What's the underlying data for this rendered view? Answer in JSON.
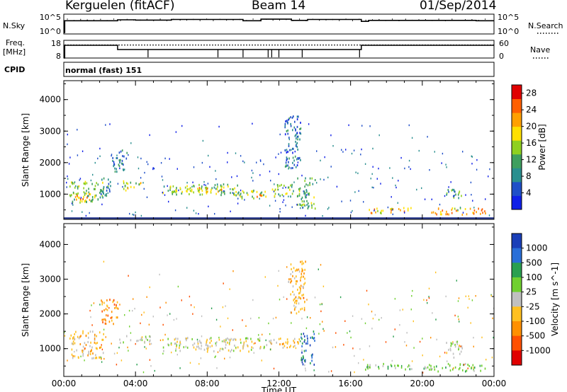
{
  "header": {
    "station": "Kerguelen (fitACF)",
    "beam": "Beam 14",
    "date": "01/Sep/2014"
  },
  "left_labels": {
    "nsky": "N.Sky",
    "freq_line1": "Freq.",
    "freq_line2": "[MHz]",
    "cpid": "CPID"
  },
  "right_labels": {
    "nsearch": "N.Search",
    "nave": "Nave"
  },
  "cpid_value": "normal (fast) 151",
  "colors": {
    "frame": "#000000",
    "scatter_ground": "#2a3b8f",
    "freq_solid": "#000000"
  },
  "chart_data": [
    {
      "id": "noise",
      "type": "line",
      "ylabel_left": "N.Sky",
      "ylabel_right": "N.Search",
      "yticks_left": [
        "10^5",
        "10^0"
      ],
      "yticks_right": [
        "10^5",
        "10^0"
      ],
      "xlim_hours": [
        0,
        24
      ],
      "series": [
        {
          "x": [
            0,
            0.05,
            0.05,
            3,
            3,
            4,
            4,
            6,
            6,
            10,
            10,
            11,
            11,
            12.7,
            12.7,
            13.6,
            13.6,
            16.6,
            16.6,
            17.0,
            17.0,
            23,
            23,
            24
          ],
          "y": [
            0,
            0,
            3.8,
            3.8,
            4.1,
            4.1,
            4.0,
            4.0,
            4.2,
            4.2,
            3.8,
            3.8,
            4.3,
            4.3,
            3.9,
            3.9,
            4.2,
            4.2,
            3.6,
            3.6,
            3.9,
            3.9,
            3.8,
            3.8
          ]
        }
      ]
    },
    {
      "id": "frequency",
      "type": "line",
      "ylabel_left": "Freq. [MHz]",
      "ylabel_right": "Nave",
      "yticks_left": [
        "18",
        "8"
      ],
      "yticks_right": [
        "60",
        "0"
      ],
      "ylim_left": [
        8,
        18
      ],
      "ylim_right": [
        0,
        60
      ],
      "xlim_hours": [
        0,
        24
      ],
      "series": [
        {
          "name": "Freq",
          "style": "solid",
          "x": [
            0,
            0.05,
            0.05,
            3.0,
            3.0,
            16.6,
            16.6,
            24
          ],
          "y": [
            8,
            8,
            15.2,
            15.2,
            12.8,
            12.8,
            15.2,
            15.2
          ]
        },
        {
          "name": "Nave",
          "style": "dotted",
          "x": [
            0.05,
            24
          ],
          "y": [
            44,
            44
          ]
        }
      ],
      "drops_hours": [
        4.7,
        8.6,
        10.0,
        11.4,
        11.6,
        12.0,
        13.3,
        16.5
      ]
    },
    {
      "id": "power",
      "type": "heatmap",
      "ylabel": "Slant Range [km]",
      "ylim": [
        200,
        4600
      ],
      "yticks": [
        1000,
        2000,
        3000,
        4000
      ],
      "xlim_hours": [
        0,
        24
      ],
      "colorbar_label": "Power [dB]",
      "colorbar_ticks": [
        4,
        8,
        12,
        16,
        20,
        24,
        28
      ],
      "colorbar_range": [
        0,
        30
      ],
      "colors": [
        "#1020e8",
        "#1f4fc8",
        "#2a8f8f",
        "#3f9f5f",
        "#8fd020",
        "#ffe000",
        "#ffa000",
        "#ff6000",
        "#e00000"
      ],
      "patches": [
        {
          "t": [
            0.3,
            2.2
          ],
          "r": [
            700,
            1400
          ],
          "v": 14
        },
        {
          "t": [
            0.6,
            1.5
          ],
          "r": [
            780,
            1000
          ],
          "v": 24
        },
        {
          "t": [
            2.0,
            2.6
          ],
          "r": [
            850,
            1500
          ],
          "v": 8
        },
        {
          "t": [
            2.7,
            3.5
          ],
          "r": [
            1700,
            2400
          ],
          "v": 8
        },
        {
          "t": [
            3.3,
            4.3
          ],
          "r": [
            1100,
            1400
          ],
          "v": 16
        },
        {
          "t": [
            5.5,
            9.8
          ],
          "r": [
            950,
            1300
          ],
          "v": 14
        },
        {
          "t": [
            6.2,
            8.8
          ],
          "r": [
            1050,
            1200
          ],
          "v": 20
        },
        {
          "t": [
            9.8,
            11.3
          ],
          "r": [
            850,
            1100
          ],
          "v": 16
        },
        {
          "t": [
            10.2,
            11.0
          ],
          "r": [
            900,
            1000
          ],
          "v": 22
        },
        {
          "t": [
            11.6,
            12.8
          ],
          "r": [
            900,
            1300
          ],
          "v": 14
        },
        {
          "t": [
            12.3,
            13.2
          ],
          "r": [
            1800,
            3500
          ],
          "v": 6
        },
        {
          "t": [
            13.0,
            14.0
          ],
          "r": [
            500,
            1500
          ],
          "v": 12
        },
        {
          "t": [
            17.0,
            19.5
          ],
          "r": [
            380,
            550
          ],
          "v": 20
        },
        {
          "t": [
            21.3,
            22.2
          ],
          "r": [
            850,
            1200
          ],
          "v": 10
        },
        {
          "t": [
            20.5,
            23.5
          ],
          "r": [
            330,
            550
          ],
          "v": 22
        }
      ],
      "ground_band_km": 230
    },
    {
      "id": "velocity",
      "type": "heatmap",
      "ylabel": "Slant Range [km]",
      "ylim": [
        200,
        4600
      ],
      "yticks": [
        1000,
        2000,
        3000,
        4000
      ],
      "xlim_hours": [
        0,
        24
      ],
      "xticks": [
        "00:00",
        "04:00",
        "08:00",
        "12:00",
        "16:00",
        "20:00",
        "00:00"
      ],
      "xlabel": "Time UT",
      "colorbar_label": "Velocity [m s^-1]",
      "colorbar_ticks": [
        "1000",
        "500",
        "100",
        "25",
        "-25",
        "-100",
        "-500",
        "-1000"
      ],
      "colors": [
        "#1a3fb8",
        "#2a6fd8",
        "#2aa050",
        "#70d030",
        "#c0c0c0",
        "#ffc020",
        "#ff9000",
        "#ff5000",
        "#e00000"
      ],
      "patches": [
        {
          "t": [
            0.3,
            2.2
          ],
          "r": [
            700,
            1500
          ],
          "v": 5
        },
        {
          "t": [
            2.0,
            3.0
          ],
          "r": [
            1700,
            2400
          ],
          "v": 6
        },
        {
          "t": [
            3.0,
            5.0
          ],
          "r": [
            1150,
            1350
          ],
          "v": 4
        },
        {
          "t": [
            5.5,
            11.5
          ],
          "r": [
            900,
            1300
          ],
          "v": 4
        },
        {
          "t": [
            11.5,
            13.2
          ],
          "r": [
            1000,
            1300
          ],
          "v": 5
        },
        {
          "t": [
            12.5,
            13.5
          ],
          "r": [
            2000,
            3500
          ],
          "v": 5
        },
        {
          "t": [
            13.2,
            14.0
          ],
          "r": [
            500,
            1500
          ],
          "v": 1
        },
        {
          "t": [
            16.5,
            19.5
          ],
          "r": [
            380,
            550
          ],
          "v": 3
        },
        {
          "t": [
            20.0,
            23.5
          ],
          "r": [
            330,
            550
          ],
          "v": 3
        },
        {
          "t": [
            21.3,
            22.2
          ],
          "r": [
            700,
            1200
          ],
          "v": 4
        }
      ]
    }
  ]
}
